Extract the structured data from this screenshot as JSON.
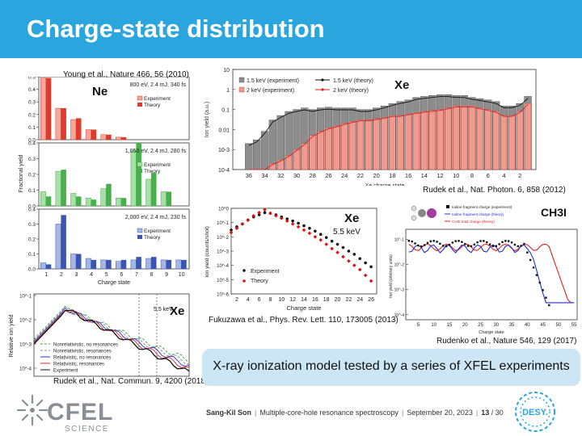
{
  "slide": {
    "title": "Charge-state distribution",
    "note": "X-ray ionization model tested by a series of XFEL experiments"
  },
  "footer": {
    "author": "Sang-Kil Son",
    "talk": "Multiple-core-hole resonance spectroscopy",
    "date": "September 20, 2023",
    "page": "13",
    "total": "/ 30"
  },
  "logos": {
    "cfel_top": "CFEL",
    "cfel_bottom": "SCIENCE",
    "desy": "DESY."
  },
  "ne_panel": {
    "citation": "Young et al., Nature 466, 56 (2010)",
    "element": "Ne",
    "ylabel": "Fractional yield",
    "xlabel": "Charge state",
    "rows": [
      {
        "condition": "800 eV, 2.4 mJ, 340 fs",
        "exp": "Experiment",
        "theory": "Theory"
      },
      {
        "condition": "1,050 eV, 2.4 mJ, 280 fs",
        "exp": "Experiment",
        "theory": "Theory"
      },
      {
        "condition": "2,000 eV, 2.4 mJ, 230 fs",
        "exp": "Experiment",
        "theory": "Theory"
      }
    ],
    "xticks": [
      "1",
      "2",
      "3",
      "4",
      "5",
      "6",
      "7",
      "8",
      "9",
      "10"
    ],
    "yticks1": [
      "0.5",
      "0.4",
      "0.3",
      "0.2",
      "0.1",
      "0.0"
    ],
    "yticks2": [
      "0.4",
      "0.3",
      "0.2",
      "0.1",
      "0.0"
    ],
    "yticks3": [
      "0.4",
      "0.3",
      "0.2",
      "0.1",
      "0.0"
    ],
    "colors": {
      "row1": "#e03a2a",
      "row2": "#46b04a",
      "row3": "#3a56b0"
    }
  },
  "xe_bar": {
    "citation": "Rudek et al., Nat. Photon. 6, 858 (2012)",
    "element": "Xe",
    "ylabel": "Ion yield (a.u.)",
    "xlabel": "Xe charge state",
    "legend": [
      "1.5 keV (experiment)",
      "1.5 keV (theory)",
      "2 keV (experiment)",
      "2 keV (theory)"
    ],
    "yticks": [
      "10",
      "1",
      "0.1",
      "0.01",
      "10-3",
      "10-4"
    ],
    "xticks": [
      "36",
      "34",
      "32",
      "30",
      "28",
      "26",
      "24",
      "22",
      "20",
      "18",
      "16",
      "14",
      "12",
      "10",
      "8",
      "6",
      "4",
      "2"
    ]
  },
  "xe_scatter": {
    "citation": "Fukuzawa et al., Phys. Rev. Lett. 110, 173005 (2013)",
    "element": "Xe",
    "energy": "5.5 keV",
    "ylabel": "Ion yield (counts/shot)",
    "xlabel": "Charge state",
    "legend": [
      "Experiment",
      "Theory"
    ],
    "yticks": [
      "10^0",
      "10^-1",
      "10^-2",
      "10^-3",
      "10^-4",
      "10^-5",
      "10^-6"
    ],
    "xticks": [
      "2",
      "4",
      "6",
      "8",
      "10",
      "12",
      "14",
      "16",
      "18",
      "20",
      "22",
      "24",
      "26"
    ]
  },
  "ch3i": {
    "citation": "Rudenko et al., Nature 546, 129 (2017)",
    "molecule": "CH3I",
    "ylabel": "Ion yield (arbitrary units)",
    "xlabel": "Charge state",
    "legend": [
      "Iodine fragment charge (experiment)",
      "Iodine fragment charge (theory)",
      "CH3I total charge (theory)"
    ],
    "xticks": [
      "5",
      "10",
      "15",
      "20",
      "25",
      "30",
      "35",
      "40",
      "45",
      "50",
      "55"
    ],
    "yticks": [
      "10^-1",
      "10^-2",
      "10^-3",
      "10^-4"
    ]
  },
  "xe_lines": {
    "citation": "Rudek et al., Nat. Commun. 9, 4200 (2018)",
    "element": "Xe",
    "energy": "5.5 keV",
    "ylabel": "Relative ion yield",
    "legend": [
      "Nonrelativistic, no resonances",
      "Nonrelativistic, resonances",
      "Relativistic, no resonances",
      "Relativistic, resonances",
      "Experiment"
    ],
    "yticks": [
      "10^-1",
      "10^-2",
      "10^-3",
      "10^-4"
    ]
  }
}
